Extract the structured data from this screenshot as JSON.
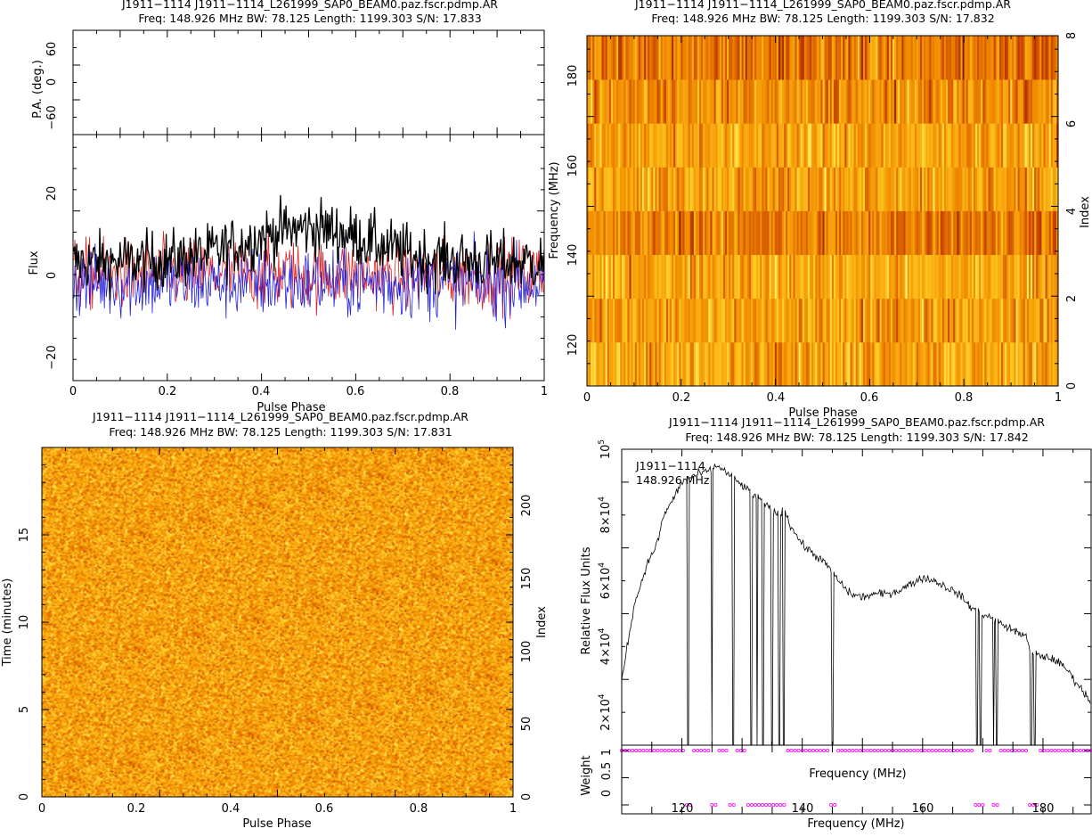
{
  "chart_data": [
    {
      "type": "line",
      "title": "J1911−1114 J1911−1114_L261999_SAP0_BEAM0.paz.fscr.pdmp.AR",
      "subtitle": "Freq: 148.926 MHz BW: 78.125 Length: 1199.303 S/N: 17.833",
      "pa_panel": {
        "ylabel": "P.A. (deg.)",
        "ylim": [
          -90,
          90
        ],
        "yticks": [
          "60",
          "0",
          "−60"
        ]
      },
      "flux_panel": {
        "ylabel": "Flux",
        "xlabel": "Pulse Phase",
        "xlim": [
          0,
          1
        ],
        "ylim": [
          -25,
          33
        ],
        "xticks": [
          "0",
          "0.2",
          "0.4",
          "0.6",
          "0.8",
          "1"
        ],
        "yticks": [
          "20",
          "0",
          "−20"
        ],
        "series": [
          {
            "color": "#000000",
            "mean": 3,
            "amp": 5
          },
          {
            "color": "#dd2222",
            "mean": 0,
            "amp": 6
          },
          {
            "color": "#2222dd",
            "mean": -2,
            "amp": 6
          }
        ]
      }
    },
    {
      "type": "heatmap",
      "title": "J1911−1114 J1911−1114_L261999_SAP0_BEAM0.paz.fscr.pdmp.AR",
      "subtitle": "Freq: 148.926 MHz BW: 78.125 Length: 1199.303 S/N: 17.832",
      "xlabel": "Pulse Phase",
      "ylabel": "Frequency (MHz)",
      "ylabel_right": "Index",
      "xlim": [
        0,
        1
      ],
      "ylim": [
        110,
        188
      ],
      "index_lim": [
        0,
        8
      ],
      "xticks": [
        "0",
        "0.2",
        "0.4",
        "0.6",
        "0.8",
        "1"
      ],
      "yticks": [
        "120",
        "140",
        "160",
        "180"
      ],
      "yticks_right": [
        "0",
        "2",
        "4",
        "6",
        "8"
      ],
      "n_channels": 8,
      "colormap": [
        "#4a0000",
        "#c43c00",
        "#f08a00",
        "#ffc820",
        "#ffff88"
      ]
    },
    {
      "type": "heatmap",
      "title": "J1911−1114 J1911−1114_L261999_SAP0_BEAM0.paz.fscr.pdmp.AR",
      "subtitle": "Freq: 148.926 MHz BW: 78.125 Length: 1199.303 S/N: 17.831",
      "xlabel": "Pulse Phase",
      "ylabel": "Time (minutes)",
      "ylabel_right": "Index",
      "xlim": [
        0,
        1
      ],
      "ylim": [
        0,
        20
      ],
      "index_lim": [
        0,
        240
      ],
      "xticks": [
        "0",
        "0.2",
        "0.4",
        "0.6",
        "0.8",
        "1"
      ],
      "yticks": [
        "0",
        "5",
        "10",
        "15"
      ],
      "yticks_right": [
        "0",
        "50",
        "100",
        "150",
        "200"
      ],
      "colormap": [
        "#4a0000",
        "#c43c00",
        "#f08a00",
        "#ffc820",
        "#ffff88"
      ]
    },
    {
      "type": "line",
      "title": "J1911−1114 J1911−1114_L261999_SAP0_BEAM0.paz.fscr.pdmp.AR",
      "subtitle": "Freq: 148.926 MHz BW: 78.125 Length: 1199.303 S/N: 17.842",
      "annotation": [
        "J1911−1114",
        "148.926 MHz"
      ],
      "xlabel": "Frequency (MHz)",
      "ylabel": "Relative Flux Units",
      "xlim": [
        110,
        188
      ],
      "ylim": [
        10000,
        100000
      ],
      "xticks": [
        "120",
        "140",
        "160",
        "180"
      ],
      "yticks": [
        {
          "base": "2×10",
          "exp": "4",
          "value": 20000
        },
        {
          "base": "4×10",
          "exp": "4",
          "value": 40000
        },
        {
          "base": "6×10",
          "exp": "4",
          "value": 60000
        },
        {
          "base": "8×10",
          "exp": "4",
          "value": 80000
        },
        {
          "base": "10",
          "exp": "5",
          "value": 100000
        }
      ],
      "spectrum": {
        "x": [
          110,
          112,
          114,
          116,
          117,
          118,
          120,
          122,
          124,
          126,
          128,
          130,
          132,
          134,
          136,
          137,
          138,
          140,
          142,
          144,
          146,
          148,
          150,
          152,
          154,
          156,
          158,
          160,
          162,
          164,
          166,
          168,
          170,
          172,
          174,
          176,
          177,
          178,
          180,
          182,
          184,
          186,
          188
        ],
        "y": [
          30000,
          52000,
          64000,
          72000,
          80000,
          83000,
          90000,
          92000,
          93000,
          95000,
          92000,
          89000,
          86000,
          83000,
          80000,
          82000,
          77000,
          71000,
          68000,
          65000,
          60000,
          56000,
          55000,
          56000,
          56000,
          57000,
          59000,
          61000,
          60000,
          58000,
          56000,
          52000,
          50000,
          48000,
          46000,
          44000,
          44000,
          38000,
          37000,
          36000,
          33000,
          28000,
          23000
        ]
      },
      "zero_channels": [
        121,
        125,
        128.5,
        131.5,
        132.5,
        133.5,
        135,
        136.2,
        136.9,
        145,
        169,
        169.6,
        171.8,
        172.3,
        178,
        178.6
      ],
      "weight_panel": {
        "ylabel": "Weight",
        "xlabel": "Frequency (MHz)",
        "ylim": [
          0,
          1
        ],
        "yticks": [
          "0",
          "0.5",
          "1"
        ],
        "marker_color": "#ff00ff"
      }
    }
  ]
}
